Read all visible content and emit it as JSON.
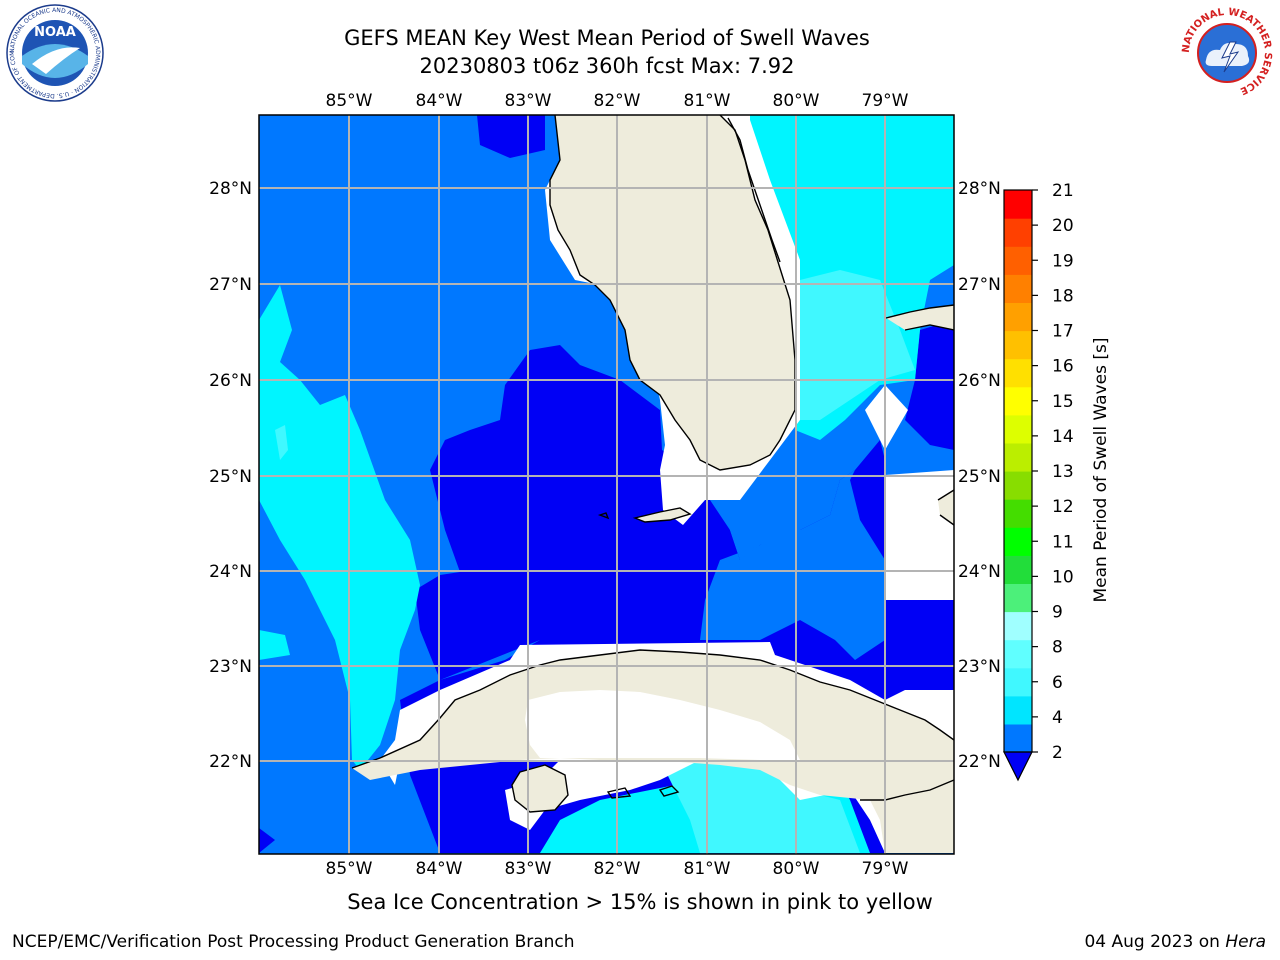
{
  "header": {
    "title_line1": "GEFS MEAN Key West Mean Period of Swell Waves",
    "title_line2": "20230803 t06z 360h fcst    Max: 7.92",
    "noaa_logo_text": "NOAA",
    "noaa_ring_text": "NATIONAL OCEANIC AND ATMOSPHERIC ADMINISTRATION · U.S. DEPARTMENT OF COMMERCE",
    "nws_ring_text": "NATIONAL WEATHER SERVICE"
  },
  "map": {
    "lon_labels": [
      "85°W",
      "84°W",
      "83°W",
      "82°W",
      "81°W",
      "80°W",
      "79°W"
    ],
    "lat_labels": [
      "28°N",
      "27°N",
      "26°N",
      "25°N",
      "24°N",
      "23°N",
      "22°N"
    ],
    "colors": {
      "land": "#eeecdc",
      "dark_blue": "#0000f5",
      "mid_blue": "#0078ff",
      "cyan": "#00f5ff",
      "light_cyan": "#40f8ff",
      "gridline": "#b4b4b4"
    }
  },
  "colorbar": {
    "label": "Mean Period of Swell Waves [s]",
    "ticks": [
      "21",
      "20",
      "19",
      "18",
      "17",
      "16",
      "15",
      "14",
      "13",
      "12",
      "11",
      "10",
      "9",
      "8",
      "6",
      "4",
      "2"
    ],
    "colors_bottom_to_top": [
      "#0078ff",
      "#00e5ff",
      "#40f8ff",
      "#60ffff",
      "#a0ffff",
      "#4cf07a",
      "#22dd3a",
      "#00ff00",
      "#44dd00",
      "#88dd00",
      "#bbee00",
      "#ddff00",
      "#ffff00",
      "#ffe000",
      "#ffc000",
      "#ffa000",
      "#ff8000",
      "#ff6000",
      "#ff4000",
      "#ff0000"
    ],
    "extend_color": "#0000f5"
  },
  "footer": {
    "sea_ice_note": "Sea Ice Concentration > 15% is shown in pink to yellow",
    "producer": "NCEP/EMC/Verification Post Processing Product Generation Branch",
    "date_text": "04 Aug 2023 on",
    "host": "Hera"
  }
}
